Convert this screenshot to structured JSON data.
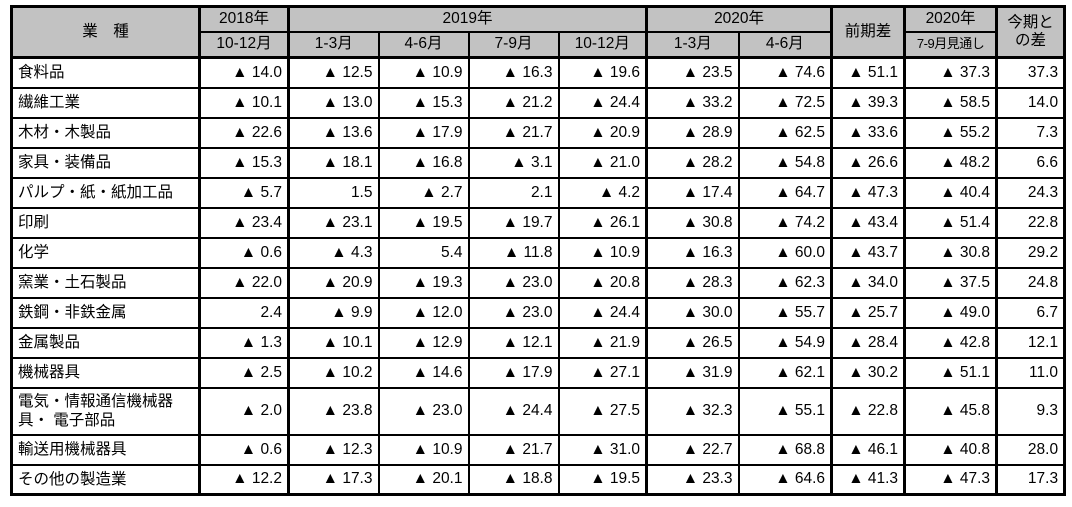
{
  "colors": {
    "header_bg": "#c2c2c2",
    "border": "#000000",
    "cell_bg": "#ffffff",
    "text": "#000000"
  },
  "table": {
    "header": {
      "industry": "業　種",
      "y2018": "2018年",
      "y2019": "2019年",
      "y2020": "2020年",
      "prev_diff": "前期差",
      "y2020_outlook": "2020年",
      "outlook_sub": "7-9月見通し",
      "current_diff": "今期と\nの差",
      "quarters": [
        "10-12月",
        "1-3月",
        "4-6月",
        "7-9月",
        "10-12月",
        "1-3月",
        "4-6月"
      ]
    },
    "negative_marker": "▲",
    "rows": [
      {
        "label": "食料品",
        "tall": false,
        "values": [
          "▲ 14.0",
          "▲ 12.5",
          "▲ 10.9",
          "▲ 16.3",
          "▲ 19.6",
          "▲ 23.5",
          "▲ 74.6",
          "▲ 51.1",
          "▲ 37.3",
          "37.3"
        ]
      },
      {
        "label": "繊維工業",
        "tall": false,
        "values": [
          "▲ 10.1",
          "▲ 13.0",
          "▲ 15.3",
          "▲ 21.2",
          "▲ 24.4",
          "▲ 33.2",
          "▲ 72.5",
          "▲ 39.3",
          "▲ 58.5",
          "14.0"
        ]
      },
      {
        "label": "木材・木製品",
        "tall": false,
        "values": [
          "▲ 22.6",
          "▲ 13.6",
          "▲ 17.9",
          "▲ 21.7",
          "▲ 20.9",
          "▲ 28.9",
          "▲ 62.5",
          "▲ 33.6",
          "▲ 55.2",
          "7.3"
        ]
      },
      {
        "label": "家具・装備品",
        "tall": false,
        "values": [
          "▲ 15.3",
          "▲ 18.1",
          "▲ 16.8",
          "▲ 3.1",
          "▲ 21.0",
          "▲ 28.2",
          "▲ 54.8",
          "▲ 26.6",
          "▲ 48.2",
          "6.6"
        ]
      },
      {
        "label": "パルプ・紙・紙加工品",
        "tall": false,
        "values": [
          "▲ 5.7",
          "1.5",
          "▲ 2.7",
          "2.1",
          "▲ 4.2",
          "▲ 17.4",
          "▲ 64.7",
          "▲ 47.3",
          "▲ 40.4",
          "24.3"
        ]
      },
      {
        "label": "印刷",
        "tall": false,
        "values": [
          "▲ 23.4",
          "▲ 23.1",
          "▲ 19.5",
          "▲ 19.7",
          "▲ 26.1",
          "▲ 30.8",
          "▲ 74.2",
          "▲ 43.4",
          "▲ 51.4",
          "22.8"
        ]
      },
      {
        "label": "化学",
        "tall": false,
        "values": [
          "▲ 0.6",
          "▲ 4.3",
          "5.4",
          "▲ 11.8",
          "▲ 10.9",
          "▲ 16.3",
          "▲ 60.0",
          "▲ 43.7",
          "▲ 30.8",
          "29.2"
        ]
      },
      {
        "label": "窯業・土石製品",
        "tall": false,
        "values": [
          "▲ 22.0",
          "▲ 20.9",
          "▲ 19.3",
          "▲ 23.0",
          "▲ 20.8",
          "▲ 28.3",
          "▲ 62.3",
          "▲ 34.0",
          "▲ 37.5",
          "24.8"
        ]
      },
      {
        "label": "鉄鋼・非鉄金属",
        "tall": false,
        "values": [
          "2.4",
          "▲ 9.9",
          "▲ 12.0",
          "▲ 23.0",
          "▲ 24.4",
          "▲ 30.0",
          "▲ 55.7",
          "▲ 25.7",
          "▲ 49.0",
          "6.7"
        ]
      },
      {
        "label": "金属製品",
        "tall": false,
        "values": [
          "▲ 1.3",
          "▲ 10.1",
          "▲ 12.9",
          "▲ 12.1",
          "▲ 21.9",
          "▲ 26.5",
          "▲ 54.9",
          "▲ 28.4",
          "▲ 42.8",
          "12.1"
        ]
      },
      {
        "label": "機械器具",
        "tall": false,
        "values": [
          "▲ 2.5",
          "▲ 10.2",
          "▲ 14.6",
          "▲ 17.9",
          "▲ 27.1",
          "▲ 31.9",
          "▲ 62.1",
          "▲ 30.2",
          "▲ 51.1",
          "11.0"
        ]
      },
      {
        "label": "電気・情報通信機械器\n具・ 電子部品",
        "tall": true,
        "values": [
          "▲ 2.0",
          "▲ 23.8",
          "▲ 23.0",
          "▲ 24.4",
          "▲ 27.5",
          "▲ 32.3",
          "▲ 55.1",
          "▲ 22.8",
          "▲ 45.8",
          "9.3"
        ]
      },
      {
        "label": "輸送用機械器具",
        "tall": false,
        "values": [
          "▲ 0.6",
          "▲ 12.3",
          "▲ 10.9",
          "▲ 21.7",
          "▲ 31.0",
          "▲ 22.7",
          "▲ 68.8",
          "▲ 46.1",
          "▲ 40.8",
          "28.0"
        ]
      },
      {
        "label": "その他の製造業",
        "tall": false,
        "values": [
          "▲ 12.2",
          "▲ 17.3",
          "▲ 20.1",
          "▲ 18.8",
          "▲ 19.5",
          "▲ 23.3",
          "▲ 64.6",
          "▲ 41.3",
          "▲ 47.3",
          "17.3"
        ]
      }
    ]
  }
}
